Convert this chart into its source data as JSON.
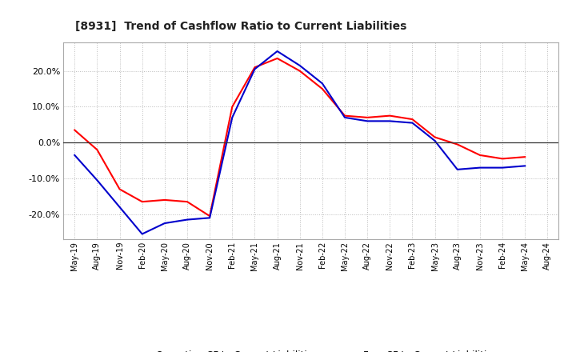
{
  "title": "[8931]  Trend of Cashflow Ratio to Current Liabilities",
  "x_labels": [
    "May-19",
    "Aug-19",
    "Nov-19",
    "Feb-20",
    "May-20",
    "Aug-20",
    "Nov-20",
    "Feb-21",
    "May-21",
    "Aug-21",
    "Nov-21",
    "Feb-22",
    "May-22",
    "Aug-22",
    "Nov-22",
    "Feb-23",
    "May-23",
    "Aug-23",
    "Nov-23",
    "Feb-24",
    "May-24",
    "Aug-24"
  ],
  "operating_cf": [
    3.5,
    -2.0,
    -13.0,
    -16.5,
    -16.0,
    -16.5,
    -20.5,
    10.0,
    21.0,
    23.5,
    20.0,
    15.0,
    7.5,
    7.0,
    7.5,
    6.5,
    1.5,
    -0.5,
    -3.5,
    -4.5,
    -4.0,
    null
  ],
  "free_cf": [
    -3.5,
    -10.5,
    -18.0,
    -25.5,
    -22.5,
    -21.5,
    -21.0,
    7.0,
    20.5,
    25.5,
    21.5,
    16.5,
    7.0,
    6.0,
    6.0,
    5.5,
    0.5,
    -7.5,
    -7.0,
    -7.0,
    -6.5,
    null
  ],
  "operating_color": "#ff0000",
  "free_color": "#0000cc",
  "ylim": [
    -27,
    28
  ],
  "yticks": [
    -20,
    -10,
    0,
    10,
    20
  ],
  "background_color": "#ffffff",
  "grid_color": "#bbbbbb",
  "legend_operating": "Operating CF to Current Liabilities",
  "legend_free": "Free CF to Current Liabilities"
}
